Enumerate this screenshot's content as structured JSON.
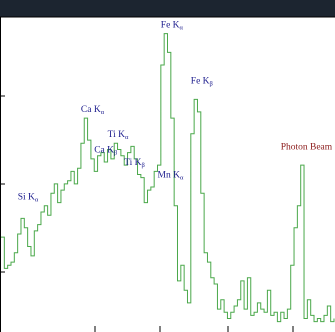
{
  "chart_data": {
    "type": "line",
    "title": "",
    "xlabel": "",
    "ylabel": "",
    "xlim": [
      0,
      100
    ],
    "ylim": [
      0,
      100
    ],
    "grid": false,
    "colors": {
      "line": "#4aa84a",
      "label": "#1a1a8c",
      "beam_label": "#8b1a1a",
      "top_band": "#1c2530",
      "axis": "#000000"
    },
    "series": [
      {
        "x": [
          0,
          1,
          2,
          3,
          4,
          5,
          6,
          7,
          8,
          9,
          10,
          11,
          12,
          13,
          14,
          15,
          16,
          17,
          18,
          19,
          20,
          21,
          22,
          23,
          24,
          25,
          26,
          27,
          28,
          29,
          30,
          31,
          32,
          33,
          34,
          35,
          36,
          37,
          38,
          39,
          40,
          41,
          42,
          43,
          44,
          45,
          46,
          47,
          48,
          49,
          50,
          51,
          52,
          53,
          54,
          55,
          56,
          57,
          58,
          59,
          60,
          61,
          62,
          63,
          64,
          65,
          66,
          67,
          68,
          69,
          70,
          71,
          72,
          73,
          74,
          75,
          76,
          77,
          78,
          79,
          80,
          81,
          82,
          83,
          84,
          85,
          86,
          87,
          88,
          89,
          90,
          91,
          92,
          93,
          94,
          95,
          96,
          97,
          98,
          99,
          100
        ],
        "values": [
          30,
          20,
          21,
          22,
          25,
          31,
          36,
          33,
          27,
          24,
          32,
          34,
          38,
          40,
          37,
          44,
          47,
          41,
          45,
          47,
          48,
          51,
          47,
          52,
          60,
          68,
          61,
          55,
          51,
          56,
          57,
          54,
          58,
          55,
          60,
          58,
          56,
          53,
          57,
          59,
          55,
          50,
          49,
          41,
          45,
          46,
          51,
          53,
          85,
          95,
          89,
          68,
          40,
          16,
          21,
          13,
          9,
          63,
          74,
          70,
          44,
          25,
          22,
          17,
          15,
          7,
          10,
          6,
          4,
          6,
          8,
          10,
          16,
          7,
          17,
          5,
          6,
          9,
          7,
          6,
          13,
          5,
          6,
          3,
          6,
          4,
          7,
          21,
          33,
          40,
          53,
          4,
          10,
          5,
          3,
          4,
          3,
          5,
          8,
          3,
          4
        ]
      }
    ],
    "annotations": [
      {
        "text": "Fe K",
        "sub": "α",
        "x": 48,
        "y": 97
      },
      {
        "text": "Fe K",
        "sub": "β",
        "x": 57,
        "y": 79
      },
      {
        "text": "Ca K",
        "sub": "α",
        "x": 24,
        "y": 70
      },
      {
        "text": "Ti K",
        "sub": "α",
        "x": 32,
        "y": 62
      },
      {
        "text": "Ca K",
        "sub": "β",
        "x": 28,
        "y": 57
      },
      {
        "text": "Ti K",
        "sub": "β",
        "x": 37,
        "y": 53
      },
      {
        "text": "Mn K",
        "sub": "α",
        "x": 47,
        "y": 49
      },
      {
        "text": "Si K",
        "sub": "α",
        "x": 5,
        "y": 42
      },
      {
        "text": "Photon Beam",
        "sub": "",
        "x": 84,
        "y": 58
      }
    ]
  }
}
